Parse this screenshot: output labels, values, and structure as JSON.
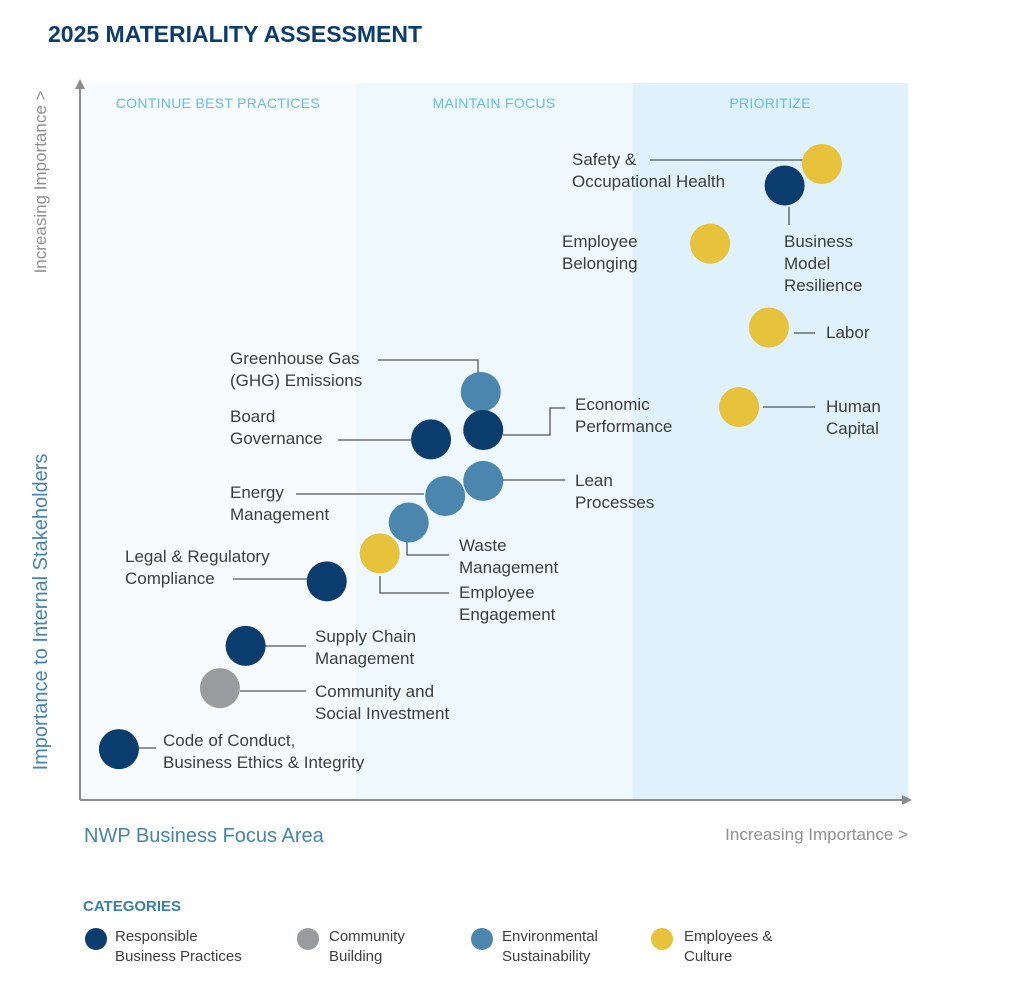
{
  "chart_data": {
    "type": "scatter",
    "title": "2025 MATERIALITY ASSESSMENT",
    "xlabel": "NWP Business Focus Area",
    "xlabel_note": "Increasing Importance >",
    "ylabel": "Importance to Internal Stakeholders",
    "ylabel_note": "Increasing Importance >",
    "xlim": [
      0,
      100
    ],
    "ylim": [
      0,
      100
    ],
    "zones": [
      {
        "label": "CONTINUE BEST PRACTICES",
        "x_range": [
          0,
          33.3
        ],
        "color": "#f7fbfe"
      },
      {
        "label": "MAINTAIN FOCUS",
        "x_range": [
          33.3,
          66.7
        ],
        "color": "#eef8fd"
      },
      {
        "label": "PRIORITIZE",
        "x_range": [
          66.7,
          100
        ],
        "color": "#dff1fa"
      }
    ],
    "categories": [
      {
        "id": "rbp",
        "label": [
          "Responsible",
          "Business Practices"
        ],
        "color": "#0b3c6e"
      },
      {
        "id": "cb",
        "label": [
          "Community",
          "Building"
        ],
        "color": "#9a9b9d"
      },
      {
        "id": "es",
        "label": [
          "Environmental",
          "Sustainability"
        ],
        "color": "#4a86ad"
      },
      {
        "id": "ec",
        "label": [
          "Employees &",
          "Culture"
        ],
        "color": "#e6c33a"
      }
    ],
    "legend_title": "CATEGORIES",
    "points": [
      {
        "label": [
          "Safety &",
          "Occupational Health"
        ],
        "category": "ec",
        "x": 89.6,
        "y": 88.7
      },
      {
        "label": [
          "Business",
          "Model",
          "Resilience"
        ],
        "category": "rbp",
        "x": 85.1,
        "y": 85.7
      },
      {
        "label": [
          "Employee",
          "Belonging"
        ],
        "category": "ec",
        "x": 76.1,
        "y": 77.6
      },
      {
        "label": [
          "Labor"
        ],
        "category": "ec",
        "x": 83.2,
        "y": 65.9
      },
      {
        "label": [
          "Human",
          "Capital"
        ],
        "category": "ec",
        "x": 79.6,
        "y": 54.8
      },
      {
        "label": [
          "Greenhouse Gas",
          "(GHG) Emissions"
        ],
        "category": "es",
        "x": 48.4,
        "y": 56.9
      },
      {
        "label": [
          "Economic",
          "Performance"
        ],
        "category": "rbp",
        "x": 48.7,
        "y": 51.6
      },
      {
        "label": [
          "Board",
          "Governance"
        ],
        "category": "rbp",
        "x": 42.4,
        "y": 50.3
      },
      {
        "label": [
          "Lean",
          "Processes"
        ],
        "category": "es",
        "x": 48.7,
        "y": 44.5
      },
      {
        "label": [
          "Energy",
          "Management"
        ],
        "category": "es",
        "x": 44.1,
        "y": 42.4
      },
      {
        "label": [
          "Waste",
          "Management"
        ],
        "category": "es",
        "x": 39.7,
        "y": 38.7
      },
      {
        "label": [
          "Employee",
          "Engagement"
        ],
        "category": "ec",
        "x": 36.2,
        "y": 34.4
      },
      {
        "label": [
          "Legal & Regulatory",
          "Compliance"
        ],
        "category": "rbp",
        "x": 29.8,
        "y": 30.5
      },
      {
        "label": [
          "Supply Chain",
          "Management"
        ],
        "category": "rbp",
        "x": 20.0,
        "y": 21.5
      },
      {
        "label": [
          "Community and",
          "Social Investment"
        ],
        "category": "cb",
        "x": 16.9,
        "y": 15.6
      },
      {
        "label": [
          "Code of Conduct,",
          "Business Ethics & Integrity"
        ],
        "category": "rbp",
        "x": 4.7,
        "y": 7.1
      }
    ]
  }
}
